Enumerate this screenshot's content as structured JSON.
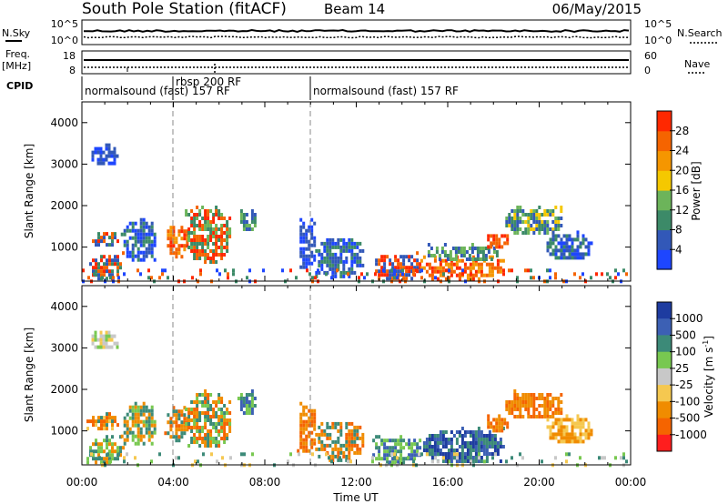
{
  "header": {
    "station": "South Pole Station (fitACF)",
    "beam": "Beam 14",
    "date": "06/May/2015"
  },
  "noise_panel": {
    "left_label": "N.Sky",
    "right_label": "N.Search",
    "left_ticks": [
      "10^5",
      "10^0"
    ],
    "right_ticks": [
      "10^5",
      "10^0"
    ]
  },
  "freq_panel": {
    "left_label_line1": "Freq.",
    "left_label_line2": "[MHz]",
    "right_label": "Nave",
    "left_ticks": [
      "18",
      "8"
    ],
    "right_ticks": [
      "60",
      "0"
    ]
  },
  "cpid": {
    "label": "CPID",
    "segments": [
      {
        "text": "normalsound (fast) 157 RF",
        "start_h": 0.0
      },
      {
        "text": "rbsp 200 RF",
        "start_h": 4.0
      },
      {
        "text": "normalsound (fast) 157 RF",
        "start_h": 10.0
      }
    ],
    "overlap_text": "normalsound (fast) 157 RF"
  },
  "colors": {
    "power": [
      "#1e46ff",
      "#3258b8",
      "#3c8a68",
      "#6cb45a",
      "#f5c800",
      "#f59600",
      "#f56400",
      "#ff2800"
    ],
    "velocity": [
      "#ff1e1e",
      "#f56400",
      "#f08c00",
      "#f5c850",
      "#c8c8c8",
      "#78c850",
      "#3c8a78",
      "#3c60b4",
      "#1e3ca0"
    ]
  },
  "power_scale": {
    "label": "Power [dB]",
    "ticks": [
      "4",
      "8",
      "12",
      "16",
      "20",
      "24",
      "28"
    ]
  },
  "velocity_scale": {
    "label": "Velocity [m s",
    "label_sup": "-1",
    "label_end": "]",
    "ticks": [
      "1000",
      "500",
      "100",
      "25",
      "-25",
      "-100",
      "-500",
      "-1000"
    ]
  },
  "chart_data": [
    {
      "type": "heatmap",
      "name": "power",
      "ylabel": "Slant Range [km]",
      "xlabel": "",
      "xlim_h": [
        0,
        24
      ],
      "ylim": [
        180,
        4500
      ],
      "yticks": [
        1000,
        2000,
        3000,
        4000
      ],
      "x_tick_labels": [
        "00:00",
        "04:00",
        "08:00",
        "12:00",
        "16:00",
        "20:00",
        "00:00"
      ],
      "blobs": [
        {
          "t": [
            0.2,
            1.6
          ],
          "r": [
            1050,
            1450
          ],
          "c": [
            1,
            2,
            6,
            7
          ]
        },
        {
          "t": [
            0.3,
            1.5
          ],
          "r": [
            3000,
            3500
          ],
          "c": [
            1,
            0
          ]
        },
        {
          "t": [
            0.2,
            1.8
          ],
          "r": [
            250,
            900
          ],
          "c": [
            7,
            6,
            2,
            1
          ]
        },
        {
          "t": [
            1.7,
            3.2
          ],
          "r": [
            700,
            1700
          ],
          "c": [
            1,
            0,
            2
          ]
        },
        {
          "t": [
            3.6,
            4.6
          ],
          "r": [
            800,
            1600
          ],
          "c": [
            7,
            6,
            5
          ]
        },
        {
          "t": [
            4.5,
            6.5
          ],
          "r": [
            600,
            2000
          ],
          "c": [
            7,
            6,
            3,
            2
          ]
        },
        {
          "t": [
            6.8,
            7.6
          ],
          "r": [
            1400,
            2000
          ],
          "c": [
            2,
            1,
            3
          ]
        },
        {
          "t": [
            9.4,
            10.2
          ],
          "r": [
            500,
            1700
          ],
          "c": [
            1,
            0
          ]
        },
        {
          "t": [
            10.2,
            12.3
          ],
          "r": [
            300,
            1300
          ],
          "c": [
            1,
            0,
            2
          ]
        },
        {
          "t": [
            12.7,
            14.8
          ],
          "r": [
            250,
            900
          ],
          "c": [
            7,
            6,
            1
          ]
        },
        {
          "t": [
            14.8,
            18.4
          ],
          "r": [
            250,
            800
          ],
          "c": [
            7,
            6,
            5
          ]
        },
        {
          "t": [
            15.0,
            18.3
          ],
          "r": [
            700,
            1100
          ],
          "c": [
            2,
            3,
            1
          ]
        },
        {
          "t": [
            17.6,
            18.6
          ],
          "r": [
            1000,
            1400
          ],
          "c": [
            7,
            6
          ]
        },
        {
          "t": [
            18.4,
            21.0
          ],
          "r": [
            1300,
            2000
          ],
          "c": [
            1,
            2,
            3,
            4
          ]
        },
        {
          "t": [
            20.2,
            22.3
          ],
          "r": [
            700,
            1400
          ],
          "c": [
            1,
            0,
            2
          ]
        },
        {
          "t": [
            0.0,
            24.0
          ],
          "r": [
            200,
            480
          ],
          "c": [
            6,
            0,
            7,
            2
          ],
          "sparse": true
        }
      ]
    },
    {
      "type": "heatmap",
      "name": "velocity",
      "ylabel": "Slant Range [km]",
      "xlabel": "Time UT",
      "xlim_h": [
        0,
        24
      ],
      "ylim": [
        180,
        4500
      ],
      "yticks": [
        1000,
        2000,
        3000,
        4000
      ],
      "x_tick_labels": [
        "00:00",
        "04:00",
        "08:00",
        "12:00",
        "16:00",
        "20:00",
        "00:00"
      ],
      "blobs": [
        {
          "t": [
            0.2,
            1.6
          ],
          "r": [
            1050,
            1450
          ],
          "c": [
            2,
            1,
            6,
            3
          ]
        },
        {
          "t": [
            0.3,
            1.5
          ],
          "r": [
            3000,
            3500
          ],
          "c": [
            4,
            3,
            5
          ]
        },
        {
          "t": [
            0.2,
            1.8
          ],
          "r": [
            250,
            900
          ],
          "c": [
            6,
            5,
            2
          ]
        },
        {
          "t": [
            1.7,
            3.2
          ],
          "r": [
            700,
            1700
          ],
          "c": [
            6,
            5,
            2
          ]
        },
        {
          "t": [
            3.6,
            4.6
          ],
          "r": [
            800,
            1600
          ],
          "c": [
            2,
            6,
            1
          ]
        },
        {
          "t": [
            4.5,
            6.5
          ],
          "r": [
            600,
            2000
          ],
          "c": [
            6,
            2,
            5,
            1
          ]
        },
        {
          "t": [
            6.8,
            7.6
          ],
          "r": [
            1400,
            2000
          ],
          "c": [
            6,
            5,
            7
          ]
        },
        {
          "t": [
            9.4,
            10.2
          ],
          "r": [
            500,
            1700
          ],
          "c": [
            2,
            1
          ]
        },
        {
          "t": [
            10.2,
            12.3
          ],
          "r": [
            300,
            1300
          ],
          "c": [
            2,
            6,
            1
          ]
        },
        {
          "t": [
            12.7,
            14.8
          ],
          "r": [
            250,
            900
          ],
          "c": [
            6,
            7,
            5
          ]
        },
        {
          "t": [
            14.8,
            18.4
          ],
          "r": [
            250,
            1100
          ],
          "c": [
            6,
            7,
            8
          ]
        },
        {
          "t": [
            17.6,
            18.6
          ],
          "r": [
            1000,
            1400
          ],
          "c": [
            2,
            1
          ]
        },
        {
          "t": [
            18.4,
            21.0
          ],
          "r": [
            1300,
            2000
          ],
          "c": [
            2,
            1
          ]
        },
        {
          "t": [
            20.2,
            22.3
          ],
          "r": [
            700,
            1400
          ],
          "c": [
            2,
            3
          ]
        },
        {
          "t": [
            0.0,
            24.0
          ],
          "r": [
            200,
            480
          ],
          "c": [
            5,
            4,
            3,
            6
          ],
          "sparse": true
        }
      ]
    }
  ]
}
